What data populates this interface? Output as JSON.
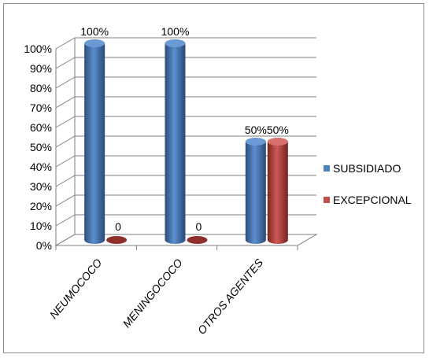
{
  "chart_data": {
    "type": "bar",
    "categories": [
      "NEUMOCOCO",
      "MENINGOCOCO",
      "OTROS AGENTES"
    ],
    "series": [
      {
        "name": "SUBSIDIADO",
        "values": [
          100,
          100,
          50
        ],
        "labels": [
          "100%",
          "100%",
          "50%"
        ],
        "color": "#4f81bd"
      },
      {
        "name": "EXCEPCIONAL",
        "values": [
          0,
          0,
          50
        ],
        "labels": [
          "0",
          "0",
          "50%"
        ],
        "color": "#c0504d"
      }
    ],
    "y_ticks": [
      "0%",
      "10%",
      "20%",
      "30%",
      "40%",
      "50%",
      "60%",
      "70%",
      "80%",
      "90%",
      "100%"
    ],
    "ylim": [
      0,
      100
    ],
    "grid": true,
    "legend_position": "right",
    "style": "3d-cylinder"
  }
}
